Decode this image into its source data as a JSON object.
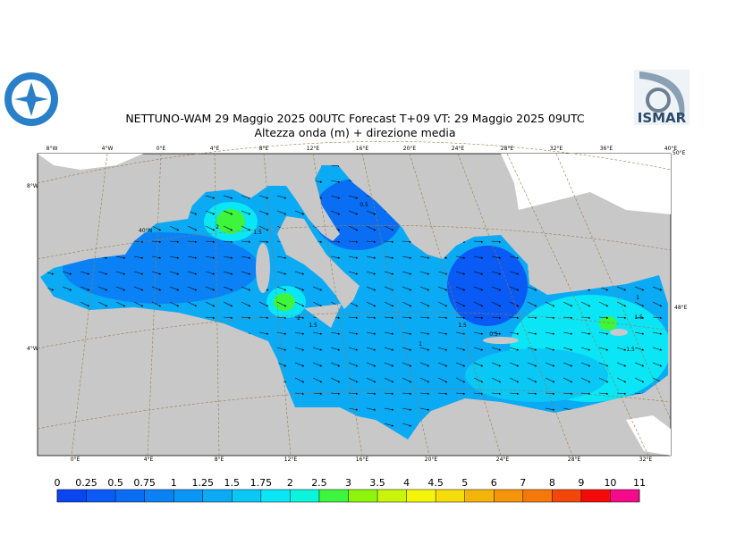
{
  "header": {
    "title_line1": "NETTUNO-WAM  29   Maggio  2025 00UTC Forecast T+09 VT: 29   Maggio  2025 09UTC",
    "title_line2": "Altezza onda (m) + direzione media"
  },
  "logos": {
    "right_text": "ISMAR"
  },
  "top_lon_labels": [
    "8°W",
    "4°W",
    "0°E",
    "4°E",
    "8°E",
    "12°E",
    "16°E",
    "20°E",
    "24°E",
    "28°E",
    "32°E",
    "36°E",
    "40°E"
  ],
  "bottom_lon_labels": [
    "0°E",
    "4°E",
    "8°E",
    "12°E",
    "16°E",
    "20°E",
    "24°E",
    "28°E",
    "32°E"
  ],
  "left_labels": [
    "8°W",
    "40°N",
    "4°W"
  ],
  "right_labels": [
    "50°E",
    "48°E"
  ],
  "contour_labels": [
    "2",
    "1.5",
    "0.5",
    "2",
    "1.5",
    "1.5",
    "0.5",
    "1",
    "1",
    "1.5",
    "1.5"
  ],
  "colorbar": {
    "levels": [
      0,
      0.25,
      0.5,
      0.75,
      1,
      1.25,
      1.5,
      1.75,
      2,
      2.5,
      3,
      3.5,
      4,
      4.5,
      5,
      6,
      7,
      8,
      9,
      10,
      11
    ],
    "colors": [
      "#0a46f0",
      "#0a5af5",
      "#0a6ef5",
      "#0a82f5",
      "#0a96f5",
      "#0aaaf5",
      "#0ac8f5",
      "#0ae6f5",
      "#0af5dc",
      "#3cf53c",
      "#8cf50a",
      "#c8f50a",
      "#f5f50a",
      "#f5dc0a",
      "#f5b40a",
      "#f5960a",
      "#f5780a",
      "#f5460a",
      "#f50a0a",
      "#f50a8c"
    ]
  }
}
